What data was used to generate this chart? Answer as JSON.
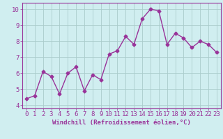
{
  "x": [
    0,
    1,
    2,
    3,
    4,
    5,
    6,
    7,
    8,
    9,
    10,
    11,
    12,
    13,
    14,
    15,
    16,
    17,
    18,
    19,
    20,
    21,
    22,
    23
  ],
  "y": [
    4.4,
    4.6,
    6.1,
    5.8,
    4.7,
    6.0,
    6.4,
    4.9,
    5.9,
    5.6,
    7.2,
    7.4,
    8.3,
    7.8,
    9.4,
    10.0,
    9.9,
    7.8,
    8.5,
    8.2,
    7.6,
    8.0,
    7.8,
    7.3
  ],
  "line_color": "#993399",
  "marker": "D",
  "markersize": 2.5,
  "linewidth": 1.0,
  "xlabel": "Windchill (Refroidissement éolien,°C)",
  "xlabel_fontsize": 6.5,
  "ylim": [
    3.8,
    10.4
  ],
  "xlim": [
    -0.5,
    23.5
  ],
  "yticks": [
    4,
    5,
    6,
    7,
    8,
    9,
    10
  ],
  "xticks": [
    0,
    1,
    2,
    3,
    4,
    5,
    6,
    7,
    8,
    9,
    10,
    11,
    12,
    13,
    14,
    15,
    16,
    17,
    18,
    19,
    20,
    21,
    22,
    23
  ],
  "tick_fontsize": 6.5,
  "bg_color": "#d0eef0",
  "grid_color": "#aacccc",
  "axes_color": "#993399",
  "spine_color": "#993399"
}
